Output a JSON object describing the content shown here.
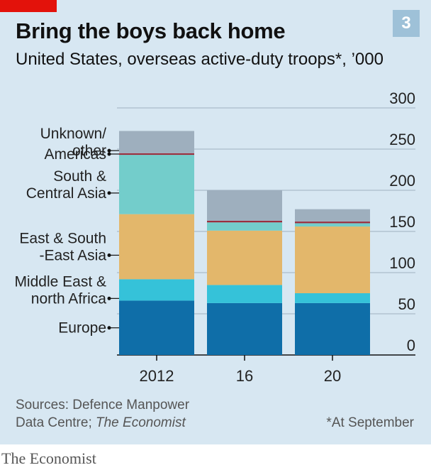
{
  "header": {
    "title": "Bring the boys back home",
    "subtitle": "United States, overseas active-duty troops*, ’000",
    "badge": "3"
  },
  "colors": {
    "background": "#d7e7f2",
    "accent_red": "#e3120b",
    "grid": "#9fb2c0"
  },
  "chart_data": {
    "type": "bar",
    "stacked": true,
    "categories": [
      "2012",
      "16",
      "20"
    ],
    "ylim": [
      0,
      300
    ],
    "yticks": [
      0,
      50,
      100,
      150,
      200,
      250,
      300
    ],
    "y_axis_side": "right",
    "legend_placement": "left, labels with leaders",
    "grid": true,
    "series": [
      {
        "name": "Europe",
        "label_lines": [
          "Europe"
        ],
        "color": "#0f6ea8",
        "values": [
          66,
          63,
          63
        ]
      },
      {
        "name": "Middle East & north Africa",
        "label_lines": [
          "Middle East &",
          "north Africa"
        ],
        "color": "#35c2d9",
        "values": [
          26,
          22,
          12
        ]
      },
      {
        "name": "East & South -East Asia",
        "label_lines": [
          "East & South",
          "-East Asia"
        ],
        "color": "#e3b76b",
        "values": [
          79,
          66,
          81
        ]
      },
      {
        "name": "South & Central Asia",
        "label_lines": [
          "South &",
          "Central Asia"
        ],
        "color": "#73cdcb",
        "values": [
          72,
          10,
          4
        ]
      },
      {
        "name": "Americas",
        "label_lines": [
          "Americas"
        ],
        "color": "#9a2f3e",
        "values": [
          2,
          2,
          2
        ]
      },
      {
        "name": "Unknown/ other",
        "label_lines": [
          "Unknown/",
          "other"
        ],
        "color": "#9eafbe",
        "values": [
          27,
          37,
          15
        ]
      }
    ]
  },
  "footer": {
    "sources_line1": "Sources: Defence Manpower",
    "sources_line2": "Data Centre; ",
    "sources_italic": "The Economist",
    "footnote": "*At September",
    "brand": "The Economist"
  }
}
